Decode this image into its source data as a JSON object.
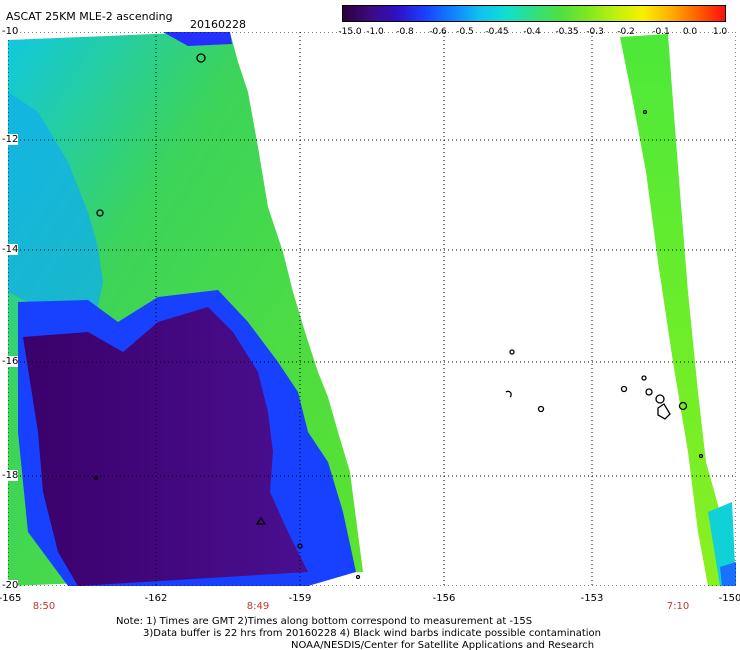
{
  "header": {
    "title": "ASCAT 25KM MLE-2 ascending",
    "date": "20160228"
  },
  "colorbar": {
    "colors": [
      "#2a0040",
      "#3d0a80",
      "#3010c8",
      "#1a40ff",
      "#1080ff",
      "#10c0f0",
      "#10e0d0",
      "#30e080",
      "#50e040",
      "#80e820",
      "#c0f010",
      "#f8f000",
      "#ffb000",
      "#ff6000",
      "#ff1010"
    ],
    "tick_labels": [
      "-15.0",
      "-1.0",
      "-0.8",
      "-0.6",
      "-0.5",
      "-0.45",
      "-0.4",
      "-0.35",
      "-0.3",
      "-0.2",
      "-0.1",
      "0.0",
      "1.0"
    ]
  },
  "axes": {
    "x_ticks": [
      "-165",
      "-162",
      "-159",
      "-156",
      "-153",
      "-150"
    ],
    "y_ticks": [
      "-10",
      "-12",
      "-14",
      "-16",
      "-18",
      "-20"
    ]
  },
  "pass_times": [
    "8:50",
    "8:49",
    "7:10"
  ],
  "notes": {
    "line1": "Note: 1) Times are GMT 2)Times along bottom correspond to measurement at -15S",
    "line2": "3)Data buffer is 22 hrs from 20160228 4) Black wind barbs indicate possible contamination",
    "line3": "NOAA/NESDIS/Center for Satellite Applications and Research"
  }
}
